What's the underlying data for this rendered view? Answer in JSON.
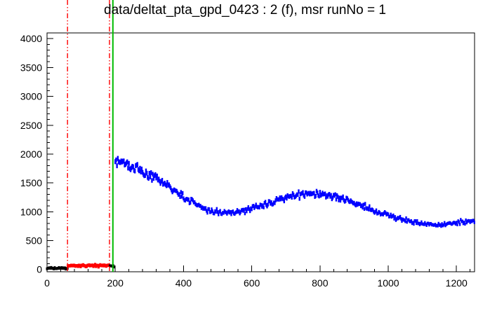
{
  "title": "data/deltat_pta_gpd_0423 : 2 (f), msr runNo = 1",
  "chart_data": {
    "type": "scatter",
    "title": "data/deltat_pta_gpd_0423 : 2 (f), msr runNo = 1",
    "xlabel": "",
    "ylabel": "",
    "xlim": [
      0,
      1253
    ],
    "ylim": [
      -40,
      4100
    ],
    "x_major_ticks": [
      0,
      200,
      400,
      600,
      800,
      1000,
      1200
    ],
    "y_major_ticks": [
      0,
      500,
      1000,
      1500,
      2000,
      2500,
      3000,
      3500,
      4000
    ],
    "x_minor_step": 40,
    "y_minor_step": 100,
    "grid": false,
    "background": "#ffffff",
    "frame_color": "#000000",
    "label_color": "#000000",
    "series": [
      {
        "name": "histogram-before-t0",
        "color": "#000000",
        "type": "flat",
        "x_start": 0,
        "x_end": 60,
        "step": 2.5,
        "base": 20,
        "noise": 6,
        "marker_w": 3,
        "marker_h": 4
      },
      {
        "name": "background-window",
        "color": "#ff0000",
        "type": "flat",
        "x_start": 61,
        "x_end": 183,
        "step": 2.5,
        "base": 65,
        "noise": 9,
        "marker_w": 3.2,
        "marker_h": 4.6
      },
      {
        "name": "histogram-gap-before-t0",
        "color": "#000000",
        "type": "flat",
        "x_start": 184,
        "x_end": 198,
        "step": 2.5,
        "base": 55,
        "noise": 18,
        "marker_w": 3,
        "marker_h": 4
      },
      {
        "name": "decay-signal",
        "color": "#0000ff",
        "type": "curve",
        "step": 2.5,
        "noise_rel": 0.023,
        "poisson_errors": true,
        "marker_w": 2.4,
        "control_points": [
          [
            200,
            1900
          ],
          [
            210,
            1872
          ],
          [
            220,
            1850
          ],
          [
            240,
            1800
          ],
          [
            260,
            1745
          ],
          [
            280,
            1690
          ],
          [
            300,
            1630
          ],
          [
            320,
            1560
          ],
          [
            340,
            1500
          ],
          [
            360,
            1430
          ],
          [
            380,
            1350
          ],
          [
            400,
            1270
          ],
          [
            420,
            1190
          ],
          [
            440,
            1120
          ],
          [
            460,
            1060
          ],
          [
            480,
            1020
          ],
          [
            500,
            995
          ],
          [
            520,
            985
          ],
          [
            540,
            990
          ],
          [
            560,
            1005
          ],
          [
            580,
            1025
          ],
          [
            600,
            1055
          ],
          [
            620,
            1085
          ],
          [
            640,
            1125
          ],
          [
            660,
            1165
          ],
          [
            680,
            1205
          ],
          [
            700,
            1245
          ],
          [
            720,
            1270
          ],
          [
            740,
            1290
          ],
          [
            760,
            1305
          ],
          [
            780,
            1310
          ],
          [
            800,
            1305
          ],
          [
            820,
            1290
          ],
          [
            840,
            1265
          ],
          [
            860,
            1235
          ],
          [
            880,
            1195
          ],
          [
            900,
            1155
          ],
          [
            920,
            1110
          ],
          [
            940,
            1065
          ],
          [
            960,
            1025
          ],
          [
            980,
            985
          ],
          [
            1000,
            945
          ],
          [
            1020,
            905
          ],
          [
            1040,
            870
          ],
          [
            1060,
            840
          ],
          [
            1080,
            815
          ],
          [
            1100,
            795
          ],
          [
            1120,
            782
          ],
          [
            1140,
            775
          ],
          [
            1160,
            778
          ],
          [
            1180,
            788
          ],
          [
            1200,
            805
          ],
          [
            1220,
            822
          ],
          [
            1240,
            838
          ],
          [
            1253,
            848
          ]
        ]
      }
    ],
    "vlines": [
      {
        "name": "fit-range-start-line",
        "x": 60,
        "color": "#ff0000",
        "style": "dashdot",
        "width": 1.4
      },
      {
        "name": "background-end-line",
        "x": 183,
        "color": "#ff0000",
        "style": "dashdot",
        "width": 1.4
      },
      {
        "name": "t0-line",
        "x": 193,
        "color": "#00bb00",
        "style": "solid",
        "width": 2
      }
    ]
  }
}
